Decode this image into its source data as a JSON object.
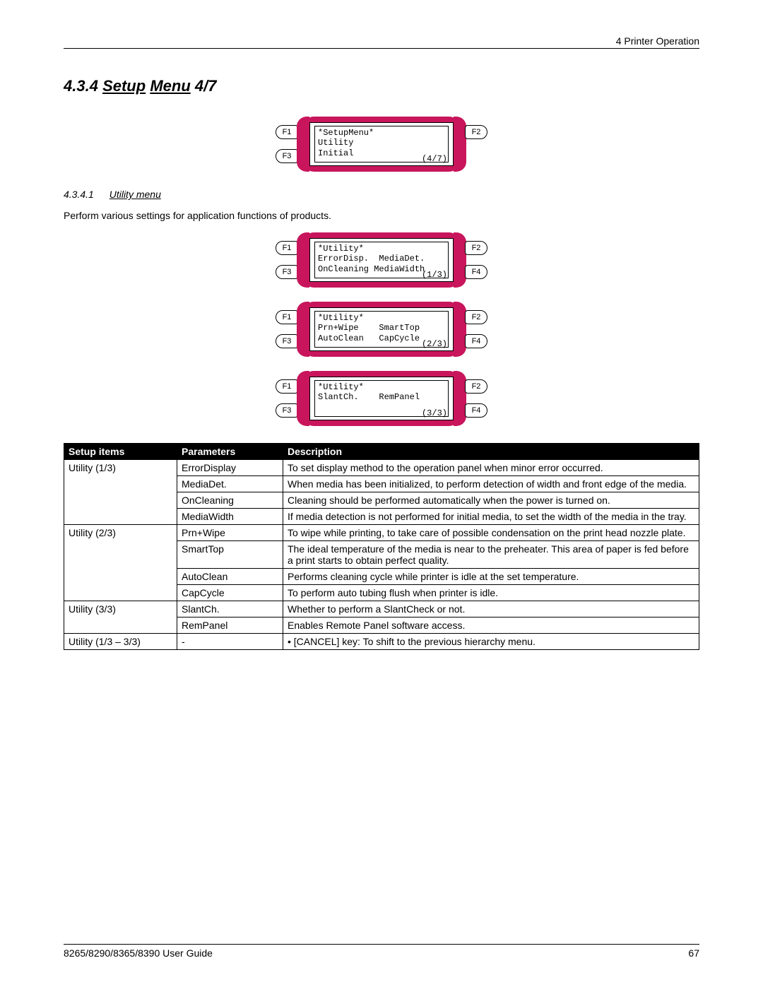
{
  "header": {
    "chapter": "4 Printer Operation"
  },
  "section": {
    "number": "4.3.4",
    "title_pre": "Setup",
    "title_under": "Menu",
    "title_post": " 4/7"
  },
  "subsection": {
    "number": "4.3.4.1",
    "label": "Utility menu"
  },
  "intro": "Perform various settings for application functions of products.",
  "lcd_main": {
    "fkeys_left": [
      "F1",
      "F3"
    ],
    "fkeys_right": [
      "F2",
      ""
    ],
    "lines": [
      "*SetupMenu*",
      "Utility",
      "Initial"
    ],
    "page": "(4/7)"
  },
  "lcd_utility": [
    {
      "fkeys_left": [
        "F1",
        "F3"
      ],
      "fkeys_right": [
        "F2",
        "F4"
      ],
      "lines": [
        "*Utility*",
        "ErrorDisp.  MediaDet.",
        "OnCleaning MediaWidth"
      ],
      "page": "(1/3)"
    },
    {
      "fkeys_left": [
        "F1",
        "F3"
      ],
      "fkeys_right": [
        "F2",
        "F4"
      ],
      "lines": [
        "*Utility*",
        "Prn+Wipe    SmartTop",
        "AutoClean   CapCycle"
      ],
      "page": "(2/3)"
    },
    {
      "fkeys_left": [
        "F1",
        "F3"
      ],
      "fkeys_right": [
        "F2",
        "F4"
      ],
      "lines": [
        "*Utility*",
        "SlantCh.    RemPanel",
        ""
      ],
      "page": "(3/3)"
    }
  ],
  "table": {
    "headers": [
      "Setup items",
      "Parameters",
      "Description"
    ],
    "rows": [
      {
        "item": "Utility (1/3)",
        "param": "ErrorDisplay",
        "desc": "To set display method to the operation panel when minor error occurred."
      },
      {
        "item": "",
        "param": "MediaDet.",
        "desc": "When media has been initialized, to perform detection of width and front edge of the media."
      },
      {
        "item": "",
        "param": "OnCleaning",
        "desc": "Cleaning should be performed automatically when the power is turned on."
      },
      {
        "item": "",
        "param": "MediaWidth",
        "desc": "If media detection is not performed for initial media, to set the width of the media in the tray."
      },
      {
        "item": "Utility (2/3)",
        "param": "Prn+Wipe",
        "desc": "To wipe while printing, to take care of possible condensation on the print head nozzle plate."
      },
      {
        "item": "",
        "param": "SmartTop",
        "desc": "The ideal temperature of the media is near to the preheater. This area of paper is fed before a print starts to obtain perfect quality."
      },
      {
        "item": "",
        "param": "AutoClean",
        "desc": "Performs cleaning cycle while printer is idle at the set temperature."
      },
      {
        "item": "",
        "param": "CapCycle",
        "desc": "To perform auto tubing flush when printer is idle."
      },
      {
        "item": "Utility (3/3)",
        "param": "SlantCh.",
        "desc": "Whether to perform a SlantCheck or not."
      },
      {
        "item": "",
        "param": "RemPanel",
        "desc": "Enables Remote Panel software access."
      },
      {
        "item": "Utility (1/3 – 3/3)",
        "param": "-",
        "desc": "• [CANCEL] key: To shift to the previous hierarchy menu."
      }
    ],
    "rowspans": [
      4,
      4,
      2,
      1
    ]
  },
  "footer": {
    "guide": "8265/8290/8365/8390 User Guide",
    "page": "67"
  },
  "colors": {
    "lcd_body": "#c8155b"
  }
}
